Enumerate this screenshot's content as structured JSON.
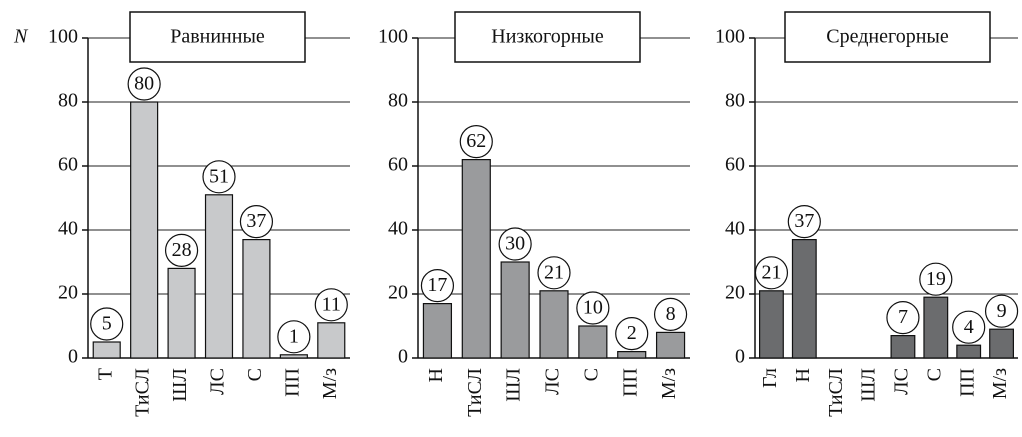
{
  "chart_data": [
    {
      "type": "bar",
      "title": "Равнинные",
      "y_label": "N",
      "categories": [
        "Т",
        "ТиСЛ",
        "ШЛ",
        "ЛС",
        "С",
        "ПП",
        "М/з"
      ],
      "values": [
        5,
        80,
        28,
        51,
        37,
        1,
        11
      ],
      "color": "#c8c9cb",
      "ylim": [
        0,
        100
      ],
      "yticks": [
        0,
        20,
        40,
        60,
        80,
        100
      ],
      "grid": true
    },
    {
      "type": "bar",
      "title": "Низкогорные",
      "categories": [
        "Н",
        "ТиСЛ",
        "ШЛ",
        "ЛС",
        "С",
        "ПП",
        "М/з"
      ],
      "values": [
        17,
        62,
        30,
        21,
        10,
        2,
        8
      ],
      "color": "#9a9b9d",
      "ylim": [
        0,
        100
      ],
      "yticks": [
        0,
        20,
        40,
        60,
        80,
        100
      ],
      "grid": true
    },
    {
      "type": "bar",
      "title": "Среднегорные",
      "categories": [
        "Гл",
        "Н",
        "ТиСЛ",
        "ШЛ",
        "ЛС",
        "С",
        "ПП",
        "М/з"
      ],
      "values": [
        21,
        37,
        null,
        null,
        7,
        19,
        4,
        9
      ],
      "color": "#6b6c6e",
      "ylim": [
        0,
        100
      ],
      "yticks": [
        0,
        20,
        40,
        60,
        80,
        100
      ],
      "grid": true
    }
  ]
}
